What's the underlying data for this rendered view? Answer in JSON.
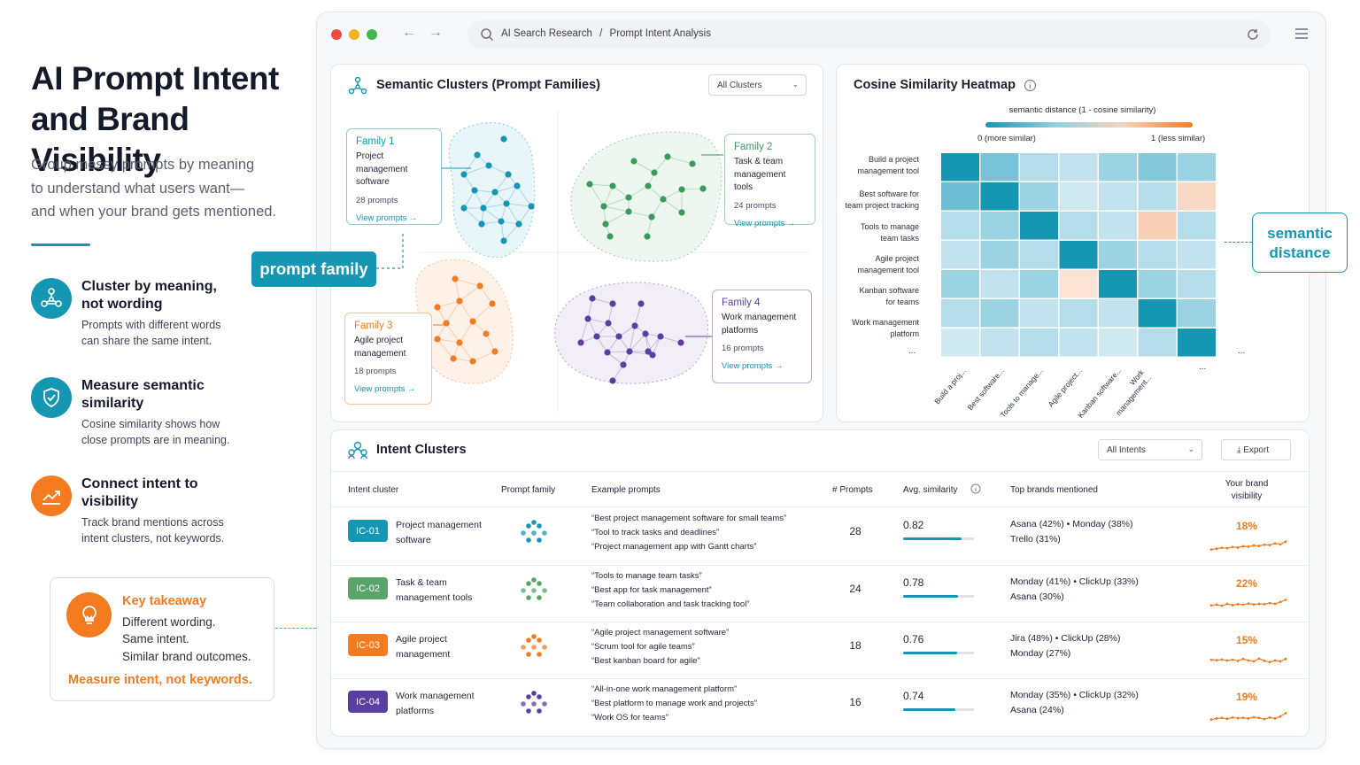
{
  "left": {
    "title_line1": "AI Prompt Intent",
    "title_line2": "and Brand Visibility",
    "subtitle_1": "Group messy prompts by meaning",
    "subtitle_2": "to understand what users want—",
    "subtitle_3": "and when your brand gets mentioned.",
    "features": [
      {
        "title_1": "Cluster by meaning,",
        "title_2": "not wording",
        "desc_1": "Prompts with different words",
        "desc_2": "can share the same intent.",
        "icon": "network-icon",
        "color": "#1596b2"
      },
      {
        "title_1": "Measure semantic",
        "title_2": "similarity",
        "desc_1": "Cosine similarity shows how",
        "desc_2": "close prompts are in meaning.",
        "icon": "shield-check-icon",
        "color": "#1596b2"
      },
      {
        "title_1": "Connect intent to",
        "title_2": "visibility",
        "desc_1": "Track brand mentions across",
        "desc_2": "intent clusters, not keywords.",
        "icon": "trend-up-icon",
        "color": "#f47b20"
      }
    ],
    "takeaway": {
      "title": "Key takeaway",
      "line1": "Different wording.",
      "line2": "Same intent.",
      "line3": "Similar brand outcomes.",
      "bottom": "Measure intent, not keywords."
    }
  },
  "badges": {
    "prompt_family": "prompt family",
    "semantic_1": "semantic",
    "semantic_2": "distance"
  },
  "browser": {
    "breadcrumb_1": "AI Search Research",
    "sep": "/",
    "breadcrumb_2": "Prompt Intent Analysis"
  },
  "clusters_card": {
    "title": "Semantic Clusters (Prompt Families)",
    "filter": "All Clusters",
    "families": [
      {
        "name": "Family 1",
        "desc_1": "Project management",
        "desc_2": "software",
        "count": "28 prompts",
        "link": "View prompts →",
        "color": "#1596b2"
      },
      {
        "name": "Family 2",
        "desc_1": "Task & team",
        "desc_2": "management tools",
        "count": "24 prompts",
        "link": "View prompts →",
        "color": "#3a9a5c"
      },
      {
        "name": "Family 3",
        "desc_1": "Agile project",
        "desc_2": "management",
        "count": "18 prompts",
        "link": "View prompts →",
        "color": "#f47b20"
      },
      {
        "name": "Family 4",
        "desc_1": "Work management",
        "desc_2": "platforms",
        "count": "16 prompts",
        "link": "View prompts →",
        "color": "#5b3fa0"
      }
    ]
  },
  "heatmap_card": {
    "title": "Cosine Similarity Heatmap",
    "legend_title": "semantic distance (1 - cosine similarity)",
    "legend_min": "0 (more similar)",
    "legend_max": "1 (less similar)",
    "rows": [
      {
        "l1": "Build a project",
        "l2": "management tool"
      },
      {
        "l1": "Best software for",
        "l2": "team project tracking"
      },
      {
        "l1": "Tools to manage",
        "l2": "team tasks"
      },
      {
        "l1": "Agile project",
        "l2": "management tool"
      },
      {
        "l1": "Kanban software",
        "l2": "for teams"
      },
      {
        "l1": "Work management",
        "l2": "platform"
      }
    ],
    "cols": [
      "Build a proj...",
      "Best software...",
      "Tools to manage...",
      "Agile project...",
      "Kanban software...",
      "Work management..."
    ],
    "ellipsis": "...",
    "matrix": [
      [
        0.0,
        0.22,
        0.35,
        0.4,
        0.3,
        0.25,
        0.3
      ],
      [
        0.2,
        0.0,
        0.3,
        0.45,
        0.4,
        0.35,
        0.7
      ],
      [
        0.35,
        0.3,
        0.0,
        0.35,
        0.4,
        0.75,
        0.35
      ],
      [
        0.4,
        0.3,
        0.35,
        0.0,
        0.3,
        0.35,
        0.4
      ],
      [
        0.3,
        0.4,
        0.3,
        0.65,
        0.0,
        0.3,
        0.35
      ],
      [
        0.35,
        0.3,
        0.4,
        0.35,
        0.4,
        0.0,
        0.3
      ],
      [
        0.45,
        0.4,
        0.35,
        0.4,
        0.45,
        0.35,
        0.0
      ]
    ]
  },
  "intent_card": {
    "title": "Intent Clusters",
    "filter": "All Intents",
    "export": "Export",
    "headers": {
      "cluster": "Intent cluster",
      "family": "Prompt family",
      "examples": "Example prompts",
      "prompts": "# Prompts",
      "avg": "Avg. similarity",
      "brands": "Top brands mentioned",
      "vis_1": "Your brand",
      "vis_2": "visibility"
    },
    "rows": [
      {
        "id": "IC-01",
        "name_1": "Project management",
        "name_2": "software",
        "color": "#1596b2",
        "ex_1": "“Best project management software for small teams”",
        "ex_2": "“Tool to track tasks and deadlines”",
        "ex_3": "“Project management app with Gantt charts”",
        "prompts": "28",
        "avg": "0.82",
        "avg_value": 0.82,
        "brands_1": "Asana (42%)  •  Monday (38%)",
        "brands_2": "Trello (31%)",
        "vis": "18%",
        "spark": [
          0.3,
          0.35,
          0.4,
          0.38,
          0.45,
          0.42,
          0.5,
          0.48,
          0.55,
          0.52,
          0.6,
          0.58,
          0.68,
          0.62,
          0.8
        ]
      },
      {
        "id": "IC-02",
        "name_1": "Task & team",
        "name_2": "management tools",
        "color": "#5aa36a",
        "ex_1": "“Tools to manage team tasks”",
        "ex_2": "“Best app for task management”",
        "ex_3": "“Team collaboration and task tracking tool”",
        "prompts": "24",
        "avg": "0.78",
        "avg_value": 0.78,
        "brands_1": "Monday (41%)  •  ClickUp (33%)",
        "brands_2": "Asana (30%)",
        "vis": "22%",
        "spark": [
          0.4,
          0.45,
          0.38,
          0.5,
          0.42,
          0.48,
          0.45,
          0.52,
          0.46,
          0.5,
          0.48,
          0.55,
          0.5,
          0.62,
          0.75
        ]
      },
      {
        "id": "IC-03",
        "name_1": "Agile project",
        "name_2": "management",
        "color": "#f47b20",
        "ex_1": "“Agile project management software”",
        "ex_2": "“Scrum tool for agile teams”",
        "ex_3": "“Best kanban board for agile”",
        "prompts": "18",
        "avg": "0.76",
        "avg_value": 0.76,
        "brands_1": "Jira (48%)  •  ClickUp (28%)",
        "brands_2": "Monday (27%)",
        "vis": "15%",
        "spark": [
          0.55,
          0.52,
          0.56,
          0.5,
          0.55,
          0.48,
          0.6,
          0.5,
          0.45,
          0.62,
          0.48,
          0.4,
          0.5,
          0.45,
          0.6
        ]
      },
      {
        "id": "IC-04",
        "name_1": "Work management",
        "name_2": "platforms",
        "color": "#5b3fa0",
        "ex_1": "“All-in-one work management platform”",
        "ex_2": "“Best platform to manage work and projects”",
        "ex_3": "“Work OS for teams”",
        "prompts": "16",
        "avg": "0.74",
        "avg_value": 0.74,
        "brands_1": "Monday (35%)  •  ClickUp (32%)",
        "brands_2": "Asana (24%)",
        "vis": "19%",
        "spark": [
          0.35,
          0.42,
          0.45,
          0.4,
          0.48,
          0.44,
          0.46,
          0.42,
          0.5,
          0.45,
          0.38,
          0.48,
          0.42,
          0.55,
          0.75
        ]
      }
    ]
  },
  "colors": {
    "teal": "#1596b2",
    "orange": "#f47b20",
    "green": "#3a9a5c",
    "purple": "#5b3fa0"
  }
}
